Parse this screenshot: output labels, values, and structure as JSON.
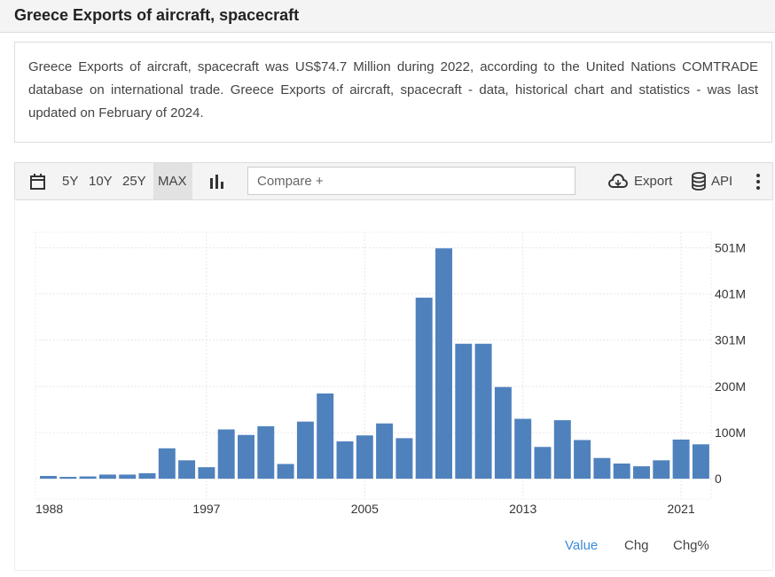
{
  "header": {
    "title": "Greece Exports of aircraft, spacecraft"
  },
  "description": "Greece Exports of aircraft, spacecraft was US$74.7 Million during 2022, according to the United Nations COMTRADE database on international trade. Greece Exports of aircraft, spacecraft - data, historical chart and statistics - was last updated on February of 2024.",
  "toolbar": {
    "ranges": [
      "5Y",
      "10Y",
      "25Y",
      "MAX"
    ],
    "compare": "Compare +",
    "export": "Export",
    "api": "API"
  },
  "tabs": [
    "Value",
    "Chg",
    "Chg%"
  ],
  "chart_data": {
    "type": "bar",
    "color": "#4f81bd",
    "x": [
      1989,
      1990,
      1991,
      1992,
      1993,
      1994,
      1995,
      1996,
      1997,
      1998,
      1999,
      2000,
      2001,
      2002,
      2003,
      2004,
      2005,
      2006,
      2007,
      2008,
      2009,
      2010,
      2011,
      2012,
      2013,
      2014,
      2015,
      2016,
      2017,
      2018,
      2019,
      2020,
      2021,
      2022
    ],
    "values": [
      6,
      4,
      5,
      9,
      9,
      12,
      66,
      40,
      25,
      107,
      95,
      114,
      32,
      124,
      185,
      81,
      94,
      120,
      88,
      393,
      500,
      293,
      293,
      199,
      130,
      69,
      127,
      84,
      45,
      33,
      27,
      40,
      85,
      74.7
    ],
    "xlim": [
      1988.35,
      2022.52
    ],
    "xticks": [
      1988,
      1997,
      2005,
      2013,
      2021
    ],
    "ylim": [
      -44,
      535
    ],
    "yticks": [
      0,
      {
        "value": 100,
        "label": "100M"
      },
      {
        "value": 200,
        "label": "200M"
      },
      {
        "value": 301,
        "label": "301M"
      },
      {
        "value": 401,
        "label": "401M"
      },
      {
        "value": 501,
        "label": "501M"
      }
    ],
    "grid": true
  }
}
